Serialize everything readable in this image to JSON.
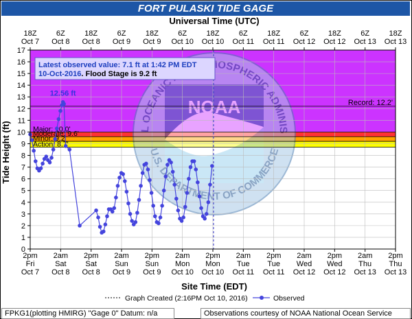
{
  "chart_data": {
    "type": "line",
    "title": "FORT PULASKI TIDE GAGE",
    "top_axis_title": "Universal Time (UTC)",
    "xlabel": "Site Time (EDT)",
    "ylabel": "Tide Height (ft)",
    "ylim": [
      0,
      17
    ],
    "y_ticks": [
      0,
      1,
      2,
      3,
      4,
      5,
      6,
      7,
      8,
      9,
      10,
      11,
      12,
      13,
      14,
      15,
      16,
      17
    ],
    "grid": true,
    "x_start": "2016-10-07 14:00",
    "x_end": "2016-10-13 14:00",
    "bottom_ticks": [
      {
        "time": "Oct 7 2pm",
        "l1": "2pm",
        "l2": "Fri",
        "l3": "Oct 7"
      },
      {
        "time": "Oct 8 2am",
        "l1": "2am",
        "l2": "Sat",
        "l3": "Oct 8"
      },
      {
        "time": "Oct 8 2pm",
        "l1": "2pm",
        "l2": "Sat",
        "l3": "Oct 8"
      },
      {
        "time": "Oct 9 2am",
        "l1": "2am",
        "l2": "Sun",
        "l3": "Oct 9"
      },
      {
        "time": "Oct 9 2pm",
        "l1": "2pm",
        "l2": "Sun",
        "l3": "Oct 9"
      },
      {
        "time": "Oct 10 2am",
        "l1": "2am",
        "l2": "Mon",
        "l3": "Oct 10"
      },
      {
        "time": "Oct 10 2pm",
        "l1": "2pm",
        "l2": "Mon",
        "l3": "Oct 10"
      },
      {
        "time": "Oct 11 2am",
        "l1": "2am",
        "l2": "Tue",
        "l3": "Oct 11"
      },
      {
        "time": "Oct 11 2pm",
        "l1": "2pm",
        "l2": "Tue",
        "l3": "Oct 11"
      },
      {
        "time": "Oct 12 2am",
        "l1": "2am",
        "l2": "Wed",
        "l3": "Oct 12"
      },
      {
        "time": "Oct 12 2pm",
        "l1": "2pm",
        "l2": "Wed",
        "l3": "Oct 12"
      },
      {
        "time": "Oct 13 2am",
        "l1": "2am",
        "l2": "Thu",
        "l3": "Oct 13"
      },
      {
        "time": "Oct 13 2pm",
        "l1": "2pm",
        "l2": "Thu",
        "l3": "Oct 13"
      }
    ],
    "top_ticks": [
      {
        "time": "Oct 7 18Z",
        "l1": "18Z",
        "l2": "Oct 7"
      },
      {
        "time": "Oct 8 6Z",
        "l1": "6Z",
        "l2": "Oct 8"
      },
      {
        "time": "Oct 8 18Z",
        "l1": "18Z",
        "l2": "Oct 8"
      },
      {
        "time": "Oct 9 6Z",
        "l1": "6Z",
        "l2": "Oct 9"
      },
      {
        "time": "Oct 9 18Z",
        "l1": "18Z",
        "l2": "Oct 9"
      },
      {
        "time": "Oct 10 6Z",
        "l1": "6Z",
        "l2": "Oct 10"
      },
      {
        "time": "Oct 10 18Z",
        "l1": "18Z",
        "l2": "Oct 10"
      },
      {
        "time": "Oct 11 6Z",
        "l1": "6Z",
        "l2": "Oct 11"
      },
      {
        "time": "Oct 11 18Z",
        "l1": "18Z",
        "l2": "Oct 11"
      },
      {
        "time": "Oct 12 6Z",
        "l1": "6Z",
        "l2": "Oct 12"
      },
      {
        "time": "Oct 12 18Z",
        "l1": "18Z",
        "l2": "Oct 12"
      },
      {
        "time": "Oct 13 6Z",
        "l1": "6Z",
        "l2": "Oct 13"
      },
      {
        "time": "Oct 13 18Z",
        "l1": "18Z",
        "l2": "Oct 13"
      }
    ],
    "bands": [
      {
        "name": "Action",
        "from": 8.7,
        "to": 9.2,
        "color": "#ffff00"
      },
      {
        "name": "Minor",
        "from": 9.2,
        "to": 9.6,
        "color": "#ffa500"
      },
      {
        "name": "Moderate",
        "from": 9.6,
        "to": 10.0,
        "color": "#ff3333"
      },
      {
        "name": "Major",
        "from": 10.0,
        "to": 17.0,
        "color": "#cc33ff"
      }
    ],
    "threshold_labels": [
      {
        "text": "Major: 10.0'",
        "value": 10.0
      },
      {
        "text": "Moderate: 9.6'",
        "value": 9.6
      },
      {
        "text": "Minor: 9.2'",
        "value": 9.2
      },
      {
        "text": "Action: 8.7'",
        "value": 8.7
      }
    ],
    "record": {
      "text": "Record: 12.2'",
      "value": 12.2
    },
    "peak_label": {
      "text": "12.56 ft",
      "time": "2016-10-08 02:54",
      "value": 12.56
    },
    "graph_created_time": "2016-10-10 14:16",
    "info_box": {
      "line1": "Latest observed value: 7.1 ft at 1:42 PM EDT",
      "line2a": "10-Oct-2016",
      "line2b": ". Flood Stage is 9.2 ft"
    },
    "series": [
      {
        "name": "Observed",
        "color": "#4444dd",
        "points": [
          [
            "2016-10-07 14:00",
            9.8
          ],
          [
            "2016-10-07 14:42",
            9.3
          ],
          [
            "2016-10-07 15:24",
            8.4
          ],
          [
            "2016-10-07 16:06",
            7.5
          ],
          [
            "2016-10-07 16:48",
            6.9
          ],
          [
            "2016-10-07 17:30",
            6.7
          ],
          [
            "2016-10-07 18:12",
            6.9
          ],
          [
            "2016-10-07 18:54",
            7.3
          ],
          [
            "2016-10-07 19:36",
            7.7
          ],
          [
            "2016-10-07 20:18",
            7.9
          ],
          [
            "2016-10-07 21:00",
            7.6
          ],
          [
            "2016-10-07 21:42",
            7.4
          ],
          [
            "2016-10-07 22:24",
            7.8
          ],
          [
            "2016-10-07 23:06",
            8.5
          ],
          [
            "2016-10-07 23:48",
            9.4
          ],
          [
            "2016-10-08 00:30",
            10.3
          ],
          [
            "2016-10-08 01:12",
            11.1
          ],
          [
            "2016-10-08 01:54",
            11.8
          ],
          [
            "2016-10-08 02:30",
            12.3
          ],
          [
            "2016-10-08 02:54",
            12.56
          ],
          [
            "2016-10-08 03:18",
            12.4
          ],
          [
            "2016-10-08 04:00",
            8.8
          ],
          [
            "2016-10-08 05:30",
            8.5
          ],
          [
            "2016-10-08 09:30",
            2.0
          ],
          [
            "2016-10-08 16:00",
            3.3
          ],
          [
            "2016-10-08 16:48",
            2.7
          ],
          [
            "2016-10-08 17:30",
            1.9
          ],
          [
            "2016-10-08 18:12",
            1.4
          ],
          [
            "2016-10-08 18:54",
            1.5
          ],
          [
            "2016-10-08 19:36",
            2.1
          ],
          [
            "2016-10-08 20:18",
            2.8
          ],
          [
            "2016-10-08 21:00",
            3.4
          ],
          [
            "2016-10-08 21:42",
            3.4
          ],
          [
            "2016-10-08 22:24",
            3.2
          ],
          [
            "2016-10-08 23:06",
            3.5
          ],
          [
            "2016-10-08 23:48",
            4.4
          ],
          [
            "2016-10-09 00:30",
            5.4
          ],
          [
            "2016-10-09 01:12",
            6.1
          ],
          [
            "2016-10-09 01:54",
            6.5
          ],
          [
            "2016-10-09 02:36",
            6.4
          ],
          [
            "2016-10-09 03:18",
            5.8
          ],
          [
            "2016-10-09 04:00",
            4.9
          ],
          [
            "2016-10-09 04:42",
            3.9
          ],
          [
            "2016-10-09 05:24",
            3.0
          ],
          [
            "2016-10-09 06:06",
            2.4
          ],
          [
            "2016-10-09 06:48",
            2.1
          ],
          [
            "2016-10-09 07:30",
            2.3
          ],
          [
            "2016-10-09 08:12",
            3.1
          ],
          [
            "2016-10-09 08:54",
            4.2
          ],
          [
            "2016-10-09 09:36",
            5.4
          ],
          [
            "2016-10-09 10:18",
            6.5
          ],
          [
            "2016-10-09 11:00",
            7.2
          ],
          [
            "2016-10-09 11:42",
            7.3
          ],
          [
            "2016-10-09 12:24",
            6.8
          ],
          [
            "2016-10-09 13:06",
            5.9
          ],
          [
            "2016-10-09 13:48",
            4.8
          ],
          [
            "2016-10-09 14:30",
            3.7
          ],
          [
            "2016-10-09 15:12",
            2.8
          ],
          [
            "2016-10-09 15:54",
            2.3
          ],
          [
            "2016-10-09 16:36",
            2.2
          ],
          [
            "2016-10-09 17:18",
            2.7
          ],
          [
            "2016-10-09 18:00",
            3.7
          ],
          [
            "2016-10-09 18:42",
            5.0
          ],
          [
            "2016-10-09 19:24",
            6.2
          ],
          [
            "2016-10-09 20:06",
            7.2
          ],
          [
            "2016-10-09 20:48",
            7.6
          ],
          [
            "2016-10-09 21:30",
            7.4
          ],
          [
            "2016-10-09 22:12",
            6.6
          ],
          [
            "2016-10-09 22:54",
            5.5
          ],
          [
            "2016-10-09 23:36",
            4.3
          ],
          [
            "2016-10-10 00:18",
            3.3
          ],
          [
            "2016-10-10 01:00",
            2.6
          ],
          [
            "2016-10-10 01:42",
            2.4
          ],
          [
            "2016-10-10 02:24",
            2.7
          ],
          [
            "2016-10-10 03:06",
            3.6
          ],
          [
            "2016-10-10 03:48",
            4.8
          ],
          [
            "2016-10-10 04:30",
            6.0
          ],
          [
            "2016-10-10 05:12",
            7.0
          ],
          [
            "2016-10-10 05:54",
            7.5
          ],
          [
            "2016-10-10 06:36",
            7.5
          ],
          [
            "2016-10-10 07:18",
            6.8
          ],
          [
            "2016-10-10 08:00",
            5.7
          ],
          [
            "2016-10-10 08:42",
            4.5
          ],
          [
            "2016-10-10 09:24",
            3.5
          ],
          [
            "2016-10-10 10:06",
            2.8
          ],
          [
            "2016-10-10 10:48",
            2.6
          ],
          [
            "2016-10-10 11:30",
            3.0
          ],
          [
            "2016-10-10 12:12",
            4.0
          ],
          [
            "2016-10-10 12:54",
            5.5
          ],
          [
            "2016-10-10 13:42",
            7.1
          ]
        ]
      }
    ]
  },
  "legend": {
    "created_label": "Graph Created (2:16PM Oct 10, 2016)",
    "observed_label": "Observed"
  },
  "footer": {
    "left": "FPKG1(plotting HMIRG) \"Gage 0\" Datum: n/a",
    "right": "Observations courtesy of NOAA National Ocean Service"
  },
  "watermark": {
    "top_text": "NATIONAL OCEANIC AND ATMOSPHERIC ADMINISTRATION",
    "bottom_text": "U.S. DEPARTMENT OF COMMERCE",
    "center_text": "NOAA"
  }
}
